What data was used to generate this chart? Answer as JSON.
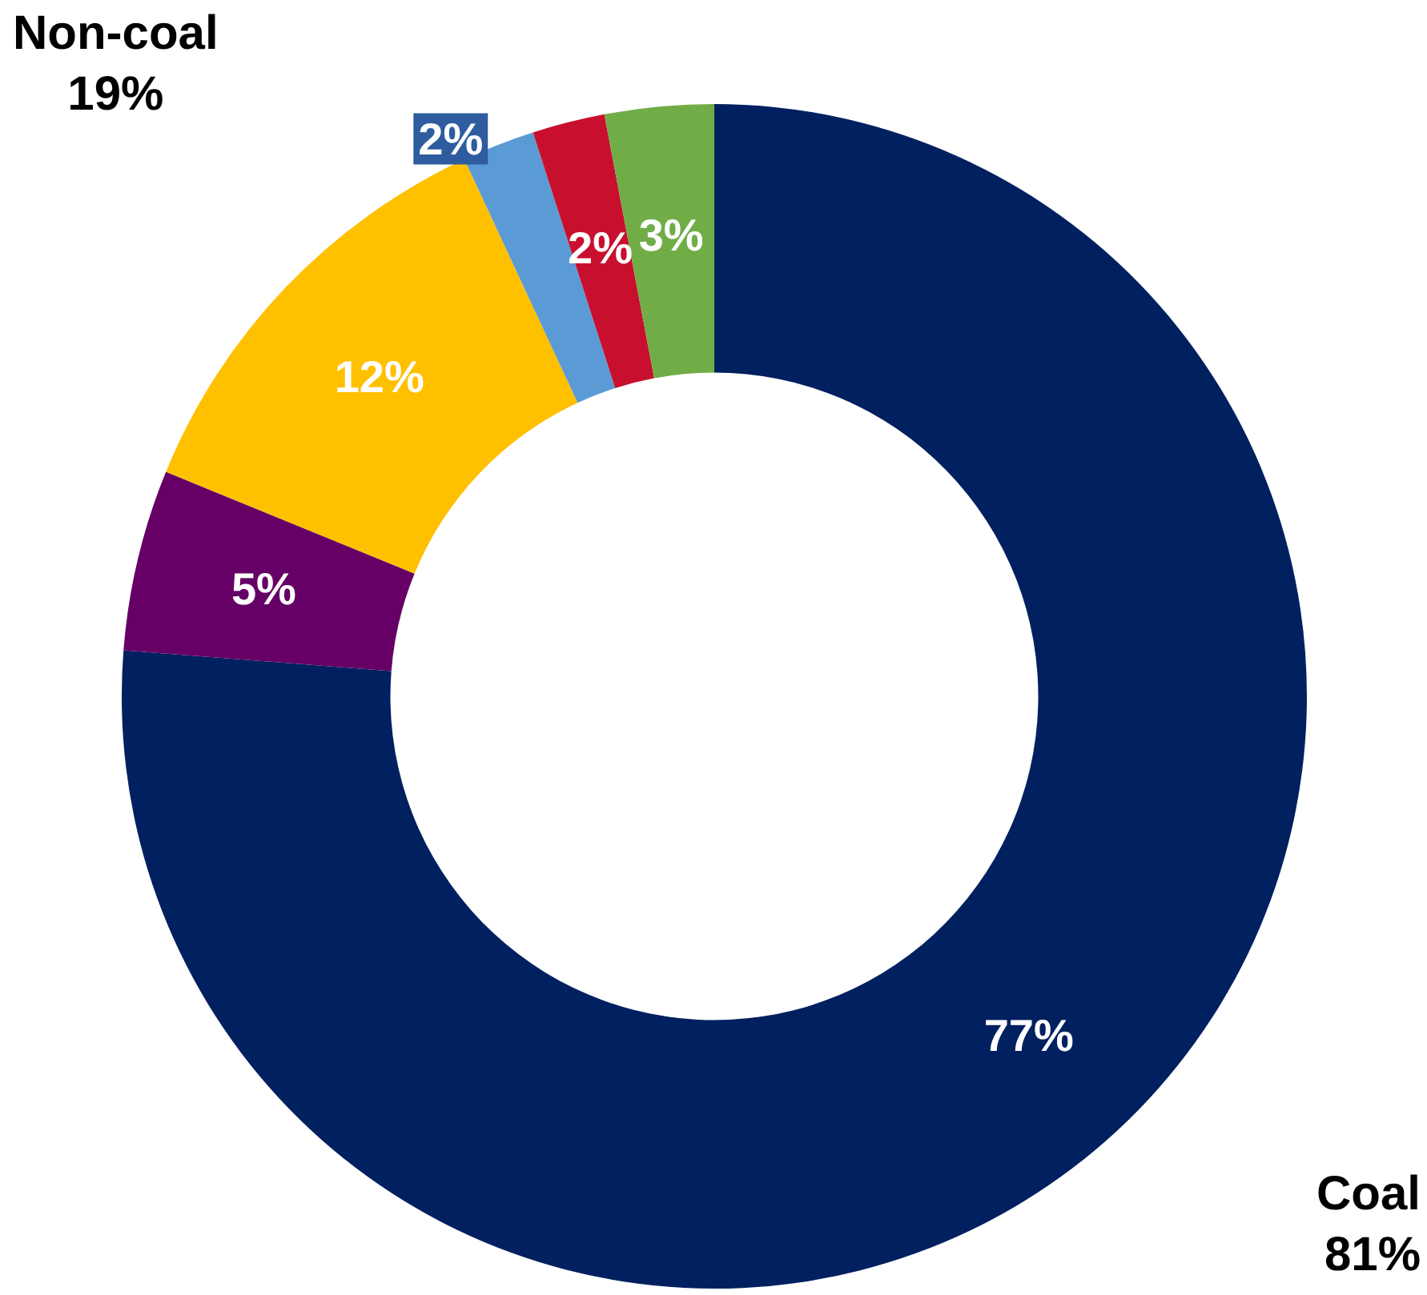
{
  "chart_data": {
    "type": "donut",
    "categories": [
      null,
      null,
      null,
      null,
      null,
      null
    ],
    "values": [
      77,
      5,
      12,
      2,
      2,
      3
    ],
    "colors": [
      "#002060",
      "#660066",
      "#ffc000",
      "#5b9bd5",
      "#c8102e",
      "#70ad47"
    ],
    "value_labels": [
      "77%",
      "5%",
      "12%",
      "2%",
      "2%",
      "3%"
    ],
    "annotations": [
      "Non-coal\n19%",
      "Coal\n81%"
    ]
  }
}
